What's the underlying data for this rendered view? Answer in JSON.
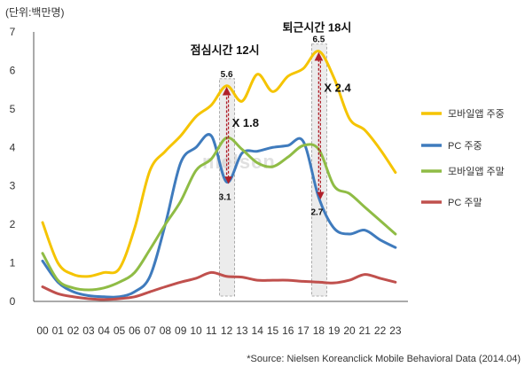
{
  "chart_data": {
    "type": "line",
    "unit_label": "(단위:백만명)",
    "categories": [
      "00",
      "01",
      "02",
      "03",
      "04",
      "05",
      "06",
      "07",
      "08",
      "09",
      "10",
      "11",
      "12",
      "13",
      "14",
      "15",
      "16",
      "17",
      "18",
      "19",
      "20",
      "21",
      "22",
      "23"
    ],
    "ylim": [
      0,
      7
    ],
    "yticks": [
      0,
      1,
      2,
      3,
      4,
      5,
      6,
      7
    ],
    "legend_position": "right",
    "series": [
      {
        "name": "모바일앱 주중",
        "color": "#f5c400",
        "values": [
          2.05,
          1.0,
          0.7,
          0.65,
          0.75,
          0.85,
          1.9,
          3.4,
          3.9,
          4.3,
          4.8,
          5.1,
          5.6,
          5.2,
          5.9,
          5.45,
          5.85,
          6.05,
          6.5,
          5.8,
          4.75,
          4.45,
          3.95,
          3.35
        ]
      },
      {
        "name": "PC 주중",
        "color": "#3f7bbd",
        "values": [
          1.05,
          0.5,
          0.25,
          0.15,
          0.12,
          0.12,
          0.25,
          0.65,
          2.0,
          3.6,
          4.0,
          4.3,
          3.1,
          3.85,
          3.9,
          4.0,
          4.05,
          4.15,
          2.7,
          1.9,
          1.75,
          1.85,
          1.6,
          1.4
        ]
      },
      {
        "name": "모바일앱 주말",
        "color": "#8fbc45",
        "values": [
          1.25,
          0.55,
          0.35,
          0.3,
          0.35,
          0.5,
          0.75,
          1.35,
          2.0,
          2.6,
          3.4,
          3.7,
          4.25,
          3.95,
          3.6,
          3.5,
          3.75,
          4.05,
          3.95,
          3.0,
          2.8,
          2.45,
          2.1,
          1.75
        ]
      },
      {
        "name": "PC 주말",
        "color": "#c0504d",
        "values": [
          0.38,
          0.2,
          0.12,
          0.07,
          0.05,
          0.07,
          0.12,
          0.25,
          0.38,
          0.5,
          0.6,
          0.75,
          0.65,
          0.63,
          0.55,
          0.55,
          0.55,
          0.52,
          0.5,
          0.48,
          0.55,
          0.7,
          0.6,
          0.5
        ]
      }
    ],
    "annotations": {
      "lunch": {
        "title": "점심시간 12시",
        "hour_index": 12,
        "top_label": "5.6",
        "top_value": 5.6,
        "bottom_label": "3.1",
        "bottom_value": 3.1,
        "ratio": "X 1.8"
      },
      "commute": {
        "title": "퇴근시간 18시",
        "hour_index": 18,
        "top_label": "6.5",
        "top_value": 6.5,
        "bottom_label": "2.7",
        "bottom_value": 2.7,
        "ratio": "X 2.4"
      }
    },
    "watermark": "nielsen",
    "source": "*Source: Nielsen Koreanclick Mobile Behavioral Data (2014.04)"
  }
}
